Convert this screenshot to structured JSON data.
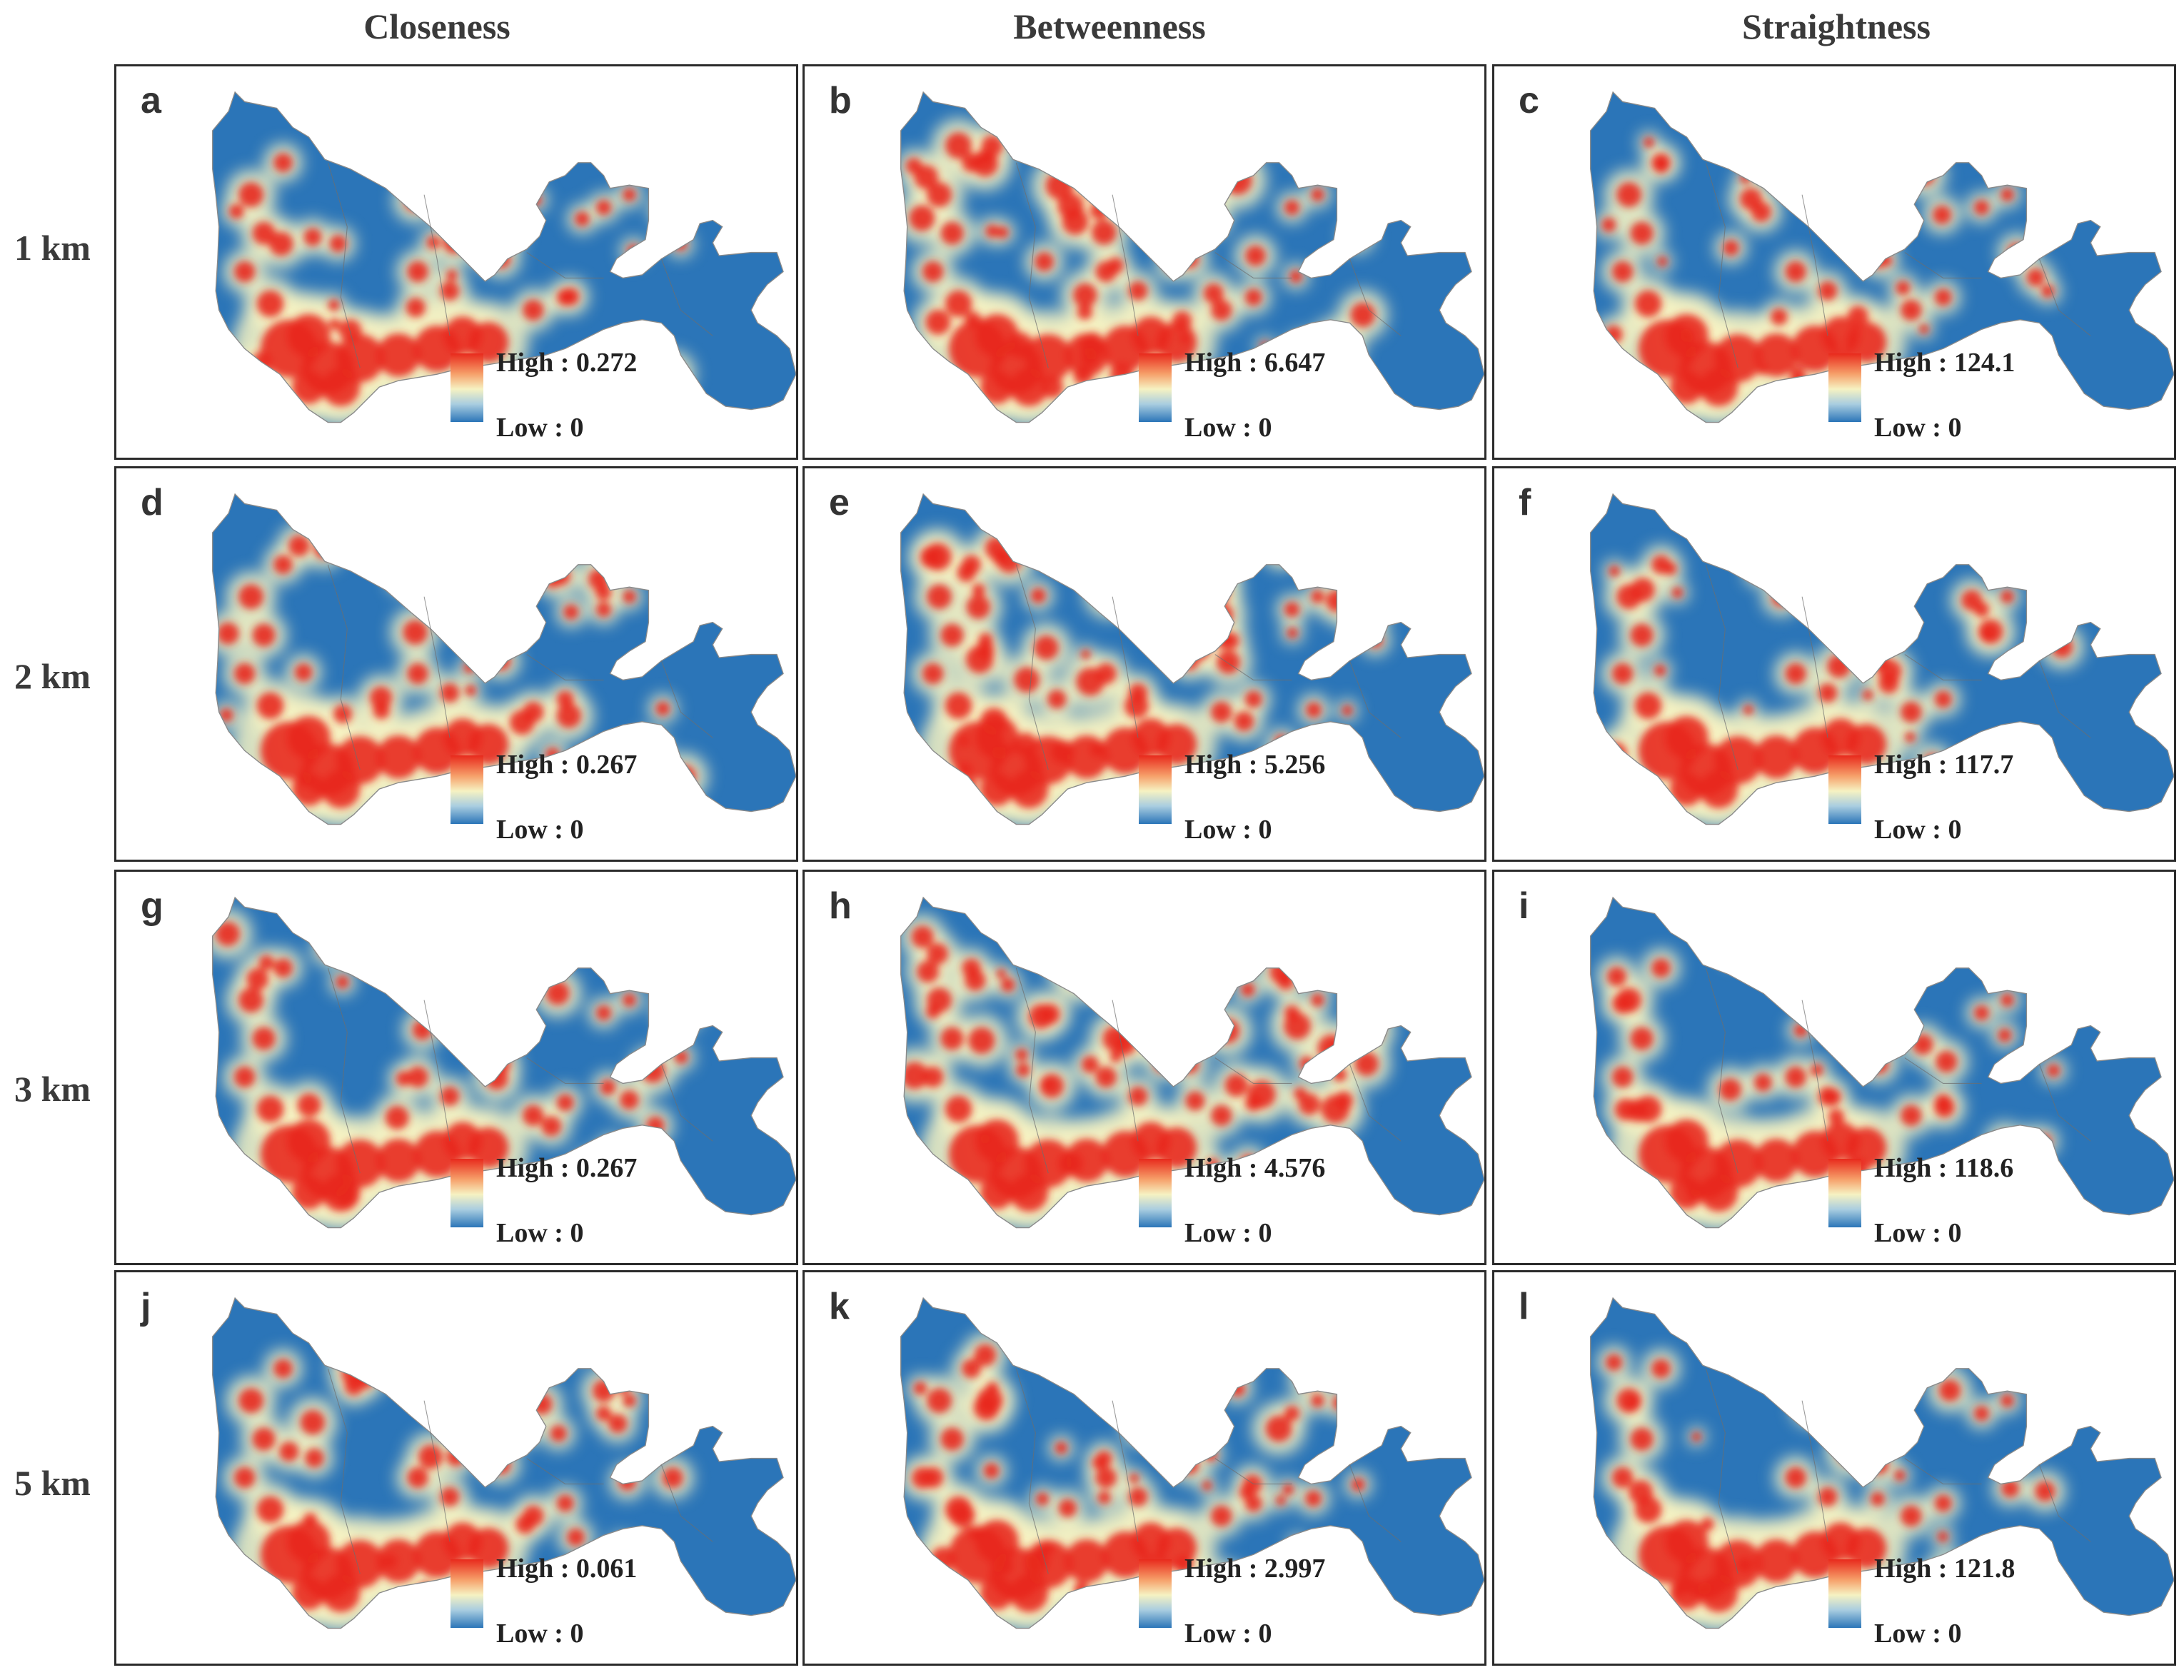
{
  "columns": [
    "Closeness",
    "Betweenness",
    "Straightness"
  ],
  "rows": [
    "1 km",
    "2 km",
    "3 km",
    "5 km"
  ],
  "legend": {
    "colors": {
      "high": "#e8291c",
      "mid": "#f6f2c2",
      "low": "#2b75b8"
    }
  },
  "panels": [
    {
      "letter": "a",
      "high": "High : 0.272",
      "low": "Low : 0"
    },
    {
      "letter": "b",
      "high": "High : 6.647",
      "low": "Low : 0"
    },
    {
      "letter": "c",
      "high": "High : 124.1",
      "low": "Low : 0"
    },
    {
      "letter": "d",
      "high": "High : 0.267",
      "low": "Low : 0"
    },
    {
      "letter": "e",
      "high": "High : 5.256",
      "low": "Low : 0"
    },
    {
      "letter": "f",
      "high": "High : 117.7",
      "low": "Low : 0"
    },
    {
      "letter": "g",
      "high": "High : 0.267",
      "low": "Low : 0"
    },
    {
      "letter": "h",
      "high": "High : 4.576",
      "low": "Low : 0"
    },
    {
      "letter": "i",
      "high": "High : 118.6",
      "low": "Low : 0"
    },
    {
      "letter": "j",
      "high": "High : 0.061",
      "low": "Low : 0"
    },
    {
      "letter": "k",
      "high": "High : 2.997",
      "low": "Low : 0"
    },
    {
      "letter": "l",
      "high": "High : 121.8",
      "low": "Low : 0"
    }
  ]
}
